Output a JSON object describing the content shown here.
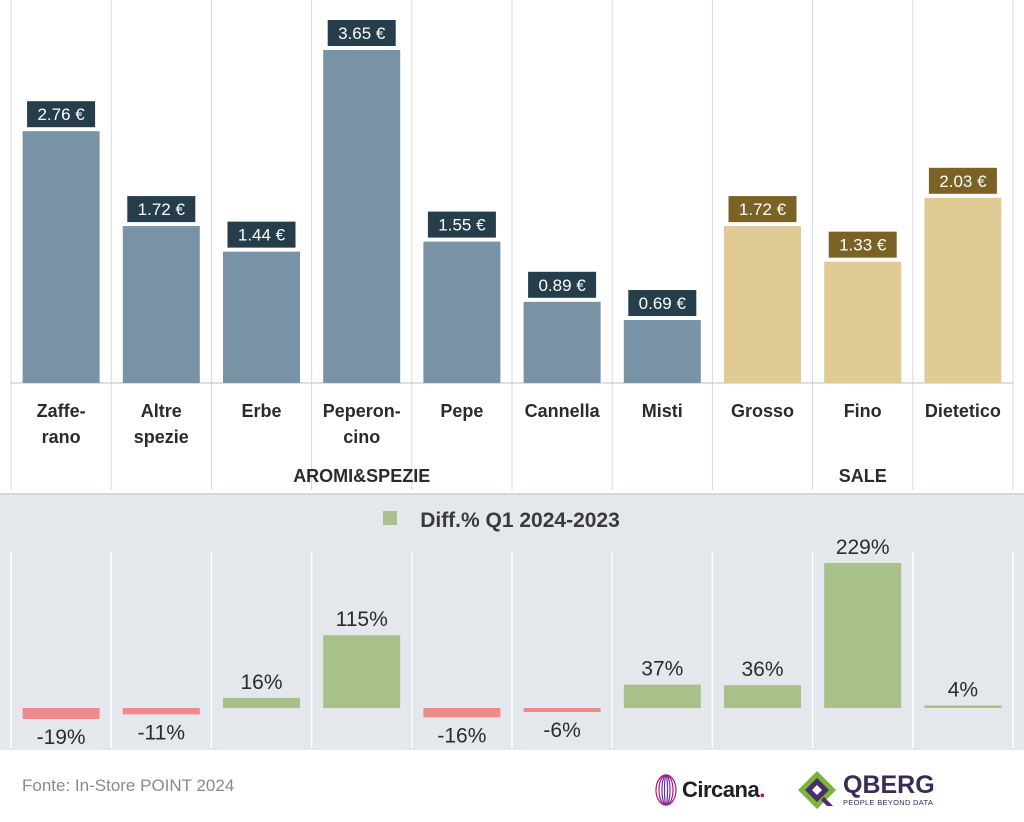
{
  "chart_data": [
    {
      "type": "bar",
      "categories": [
        "Zaffe-\nrano",
        "Altre\nspezie",
        "Erbe",
        "Peperon-\ncino",
        "Pepe",
        "Cannella",
        "Misti",
        "Grosso",
        "Fino",
        "Dietetico"
      ],
      "groups": [
        {
          "label": "AROMI&SPEZIE",
          "categories": [
            0,
            1,
            2,
            3,
            4,
            5,
            6
          ]
        },
        {
          "label": "SALE",
          "categories": [
            7,
            8,
            9
          ]
        }
      ],
      "values": [
        2.76,
        1.72,
        1.44,
        3.65,
        1.55,
        0.89,
        0.69,
        1.72,
        1.33,
        2.03
      ],
      "value_labels": [
        "2.76 €",
        "1.72 €",
        "1.44 €",
        "3.65 €",
        "1.55 €",
        "0.89 €",
        "0.69 €",
        "1.72 €",
        "1.33 €",
        "2.03 €"
      ],
      "ylim": [
        0,
        3.65
      ],
      "grid": false,
      "colors": {
        "aromi_bar": "#7893a5",
        "aromi_label_bg": "#263d4b",
        "sale_bar": "#dfcb93",
        "sale_label_bg": "#7a6224"
      }
    },
    {
      "type": "bar",
      "legend": "Diff.% Q1 2024-2023",
      "legend_position": "top-center",
      "values": [
        -19,
        -11,
        16,
        115,
        -16,
        -6,
        37,
        36,
        229,
        4
      ],
      "value_labels": [
        "-19%",
        "-11%",
        "16%",
        "115%",
        "-16%",
        "-6%",
        "37%",
        "36%",
        "229%",
        "4%"
      ],
      "grid": false,
      "colors": {
        "positive": "#a8c08a",
        "negative": "#f08a8a",
        "background": "#e4e8ed"
      }
    }
  ],
  "footer": {
    "source": "Fonte: In-Store POINT 2024",
    "logo_circana": "Circana",
    "logo_qberg": "QBERG",
    "logo_qberg_tagline": "PEOPLE BEYOND DATA"
  }
}
